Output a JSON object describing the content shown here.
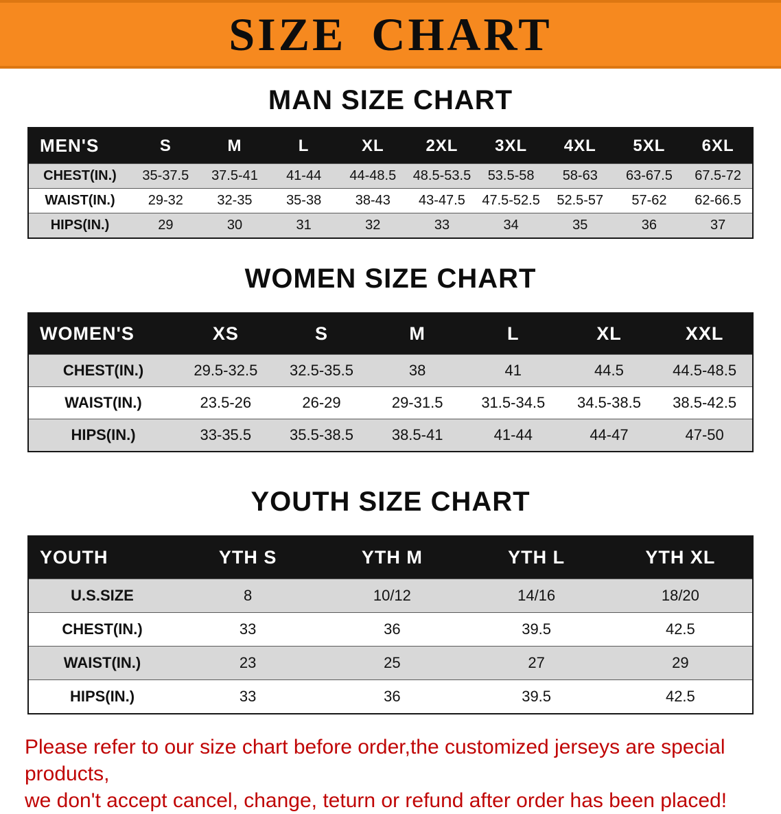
{
  "banner": {
    "title": "SIZE CHART",
    "bg_color": "#F6891F"
  },
  "chart_data": [
    {
      "type": "table",
      "title": "MAN SIZE CHART",
      "header": [
        "MEN'S",
        "S",
        "M",
        "L",
        "XL",
        "2XL",
        "3XL",
        "4XL",
        "5XL",
        "6XL"
      ],
      "rows": [
        [
          "CHEST(IN.)",
          "35-37.5",
          "37.5-41",
          "41-44",
          "44-48.5",
          "48.5-53.5",
          "53.5-58",
          "58-63",
          "63-67.5",
          "67.5-72"
        ],
        [
          "WAIST(IN.)",
          "29-32",
          "32-35",
          "35-38",
          "38-43",
          "43-47.5",
          "47.5-52.5",
          "52.5-57",
          "57-62",
          "62-66.5"
        ],
        [
          "HIPS(IN.)",
          "29",
          "30",
          "31",
          "32",
          "33",
          "34",
          "35",
          "36",
          "37"
        ]
      ]
    },
    {
      "type": "table",
      "title": "WOMEN SIZE CHART",
      "header": [
        "WOMEN'S",
        "XS",
        "S",
        "M",
        "L",
        "XL",
        "XXL"
      ],
      "rows": [
        [
          "CHEST(IN.)",
          "29.5-32.5",
          "32.5-35.5",
          "38",
          "41",
          "44.5",
          "44.5-48.5"
        ],
        [
          "WAIST(IN.)",
          "23.5-26",
          "26-29",
          "29-31.5",
          "31.5-34.5",
          "34.5-38.5",
          "38.5-42.5"
        ],
        [
          "HIPS(IN.)",
          "33-35.5",
          "35.5-38.5",
          "38.5-41",
          "41-44",
          "44-47",
          "47-50"
        ]
      ]
    },
    {
      "type": "table",
      "title": "YOUTH SIZE CHART",
      "header": [
        "YOUTH",
        "YTH S",
        "YTH M",
        "YTH L",
        "YTH XL"
      ],
      "rows": [
        [
          "U.S.SIZE",
          "8",
          "10/12",
          "14/16",
          "18/20"
        ],
        [
          "CHEST(IN.)",
          "33",
          "36",
          "39.5",
          "42.5"
        ],
        [
          "WAIST(IN.)",
          "23",
          "25",
          "27",
          "29"
        ],
        [
          "HIPS(IN.)",
          "33",
          "36",
          "39.5",
          "42.5"
        ]
      ]
    }
  ],
  "footer": {
    "lines": [
      "Please refer to our size chart before order,the customized jerseys are special products,",
      "we don't accept cancel, change, teturn or refund after order has been placed!"
    ],
    "text_color": "#C00505"
  },
  "colors": {
    "banner_orange": "#F6891F",
    "table_header_black": "#141414",
    "row_stripe_gray": "#D8D8D8",
    "disclaimer_red": "#C00505"
  }
}
